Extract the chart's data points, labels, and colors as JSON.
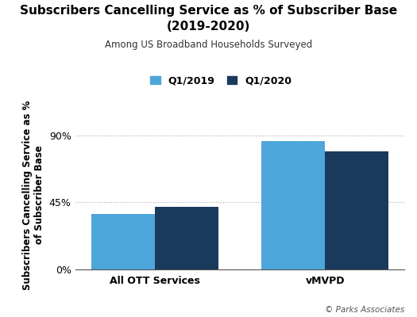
{
  "title_line1": "Subscribers Cancelling Service as % of Subscriber Base",
  "title_line2": "(2019-2020)",
  "subtitle": "Among US Broadband Households Surveyed",
  "categories": [
    "All OTT Services",
    "vMVPD"
  ],
  "q1_2019_values": [
    37,
    86
  ],
  "q1_2020_values": [
    42,
    79
  ],
  "color_2019": "#4da6d9",
  "color_2020": "#1a3a5c",
  "yticks": [
    0,
    45,
    90
  ],
  "ytick_labels": [
    "0%",
    "45%",
    "90%"
  ],
  "ylim": [
    0,
    100
  ],
  "legend_labels": [
    "Q1/2019",
    "Q1/2020"
  ],
  "copyright": "© Parks Associates",
  "background_color": "#ffffff",
  "bar_width": 0.28
}
